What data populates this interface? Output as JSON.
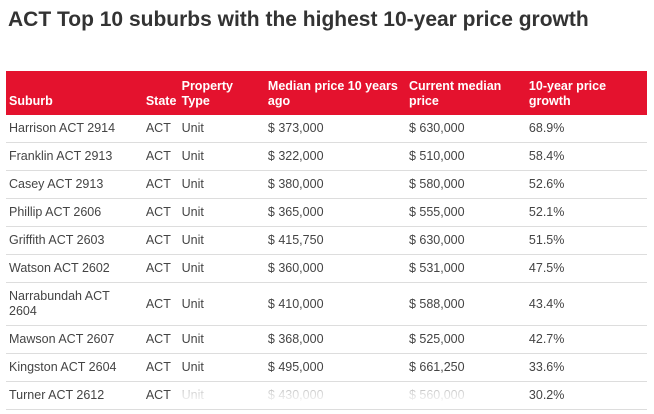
{
  "title": "ACT Top 10 suburbs with the highest 10-year price growth",
  "headers": [
    "Suburb",
    "State",
    "Property Type",
    "Median price 10 years ago",
    "Current median price",
    "10-year price growth"
  ],
  "rows": [
    {
      "suburb": "Harrison ACT 2914",
      "state": "ACT",
      "type": "Unit",
      "median10": "$ 373,000",
      "current": "$ 630,000",
      "growth": "68.9%"
    },
    {
      "suburb": "Franklin ACT 2913",
      "state": "ACT",
      "type": "Unit",
      "median10": "$ 322,000",
      "current": "$ 510,000",
      "growth": "58.4%"
    },
    {
      "suburb": "Casey ACT 2913",
      "state": "ACT",
      "type": "Unit",
      "median10": "$ 380,000",
      "current": "$ 580,000",
      "growth": "52.6%"
    },
    {
      "suburb": "Phillip ACT 2606",
      "state": "ACT",
      "type": "Unit",
      "median10": "$ 365,000",
      "current": "$ 555,000",
      "growth": "52.1%"
    },
    {
      "suburb": "Griffith ACT 2603",
      "state": "ACT",
      "type": "Unit",
      "median10": "$ 415,750",
      "current": "$ 630,000",
      "growth": "51.5%"
    },
    {
      "suburb": "Watson ACT 2602",
      "state": "ACT",
      "type": "Unit",
      "median10": "$ 360,000",
      "current": "$ 531,000",
      "growth": "47.5%"
    },
    {
      "suburb": "Narrabundah ACT 2604",
      "state": "ACT",
      "type": "Unit",
      "median10": "$ 410,000",
      "current": "$ 588,000",
      "growth": "43.4%"
    },
    {
      "suburb": "Mawson ACT 2607",
      "state": "ACT",
      "type": "Unit",
      "median10": "$ 368,000",
      "current": "$ 525,000",
      "growth": "42.7%"
    },
    {
      "suburb": "Kingston ACT 2604",
      "state": "ACT",
      "type": "Unit",
      "median10": "$ 495,000",
      "current": "$ 661,250",
      "growth": "33.6%"
    },
    {
      "suburb": "Turner ACT 2612",
      "state": "ACT",
      "type": "Unit",
      "median10": "$ 430,000",
      "current": "$ 560,000",
      "growth": "30.2%"
    }
  ],
  "colors": {
    "header_bg": "#e4122e",
    "header_text": "#ffffff",
    "title_text": "#333333"
  }
}
